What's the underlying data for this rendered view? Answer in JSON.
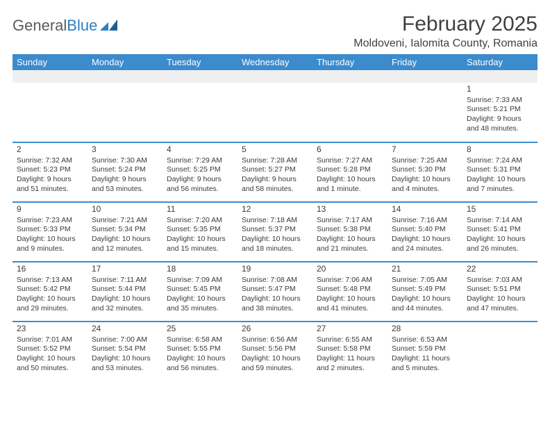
{
  "logo": {
    "text1": "General",
    "text2": "Blue"
  },
  "title": "February 2025",
  "location": "Moldoveni, Ialomita County, Romania",
  "colors": {
    "header_bg": "#3b8bcd",
    "header_text": "#ffffff",
    "row_border": "#3b8bcd",
    "blank_bg": "#efefef",
    "body_text": "#3a3a3a",
    "logo_gray": "#5a5a5a",
    "logo_blue": "#2a7ec4"
  },
  "columns": [
    "Sunday",
    "Monday",
    "Tuesday",
    "Wednesday",
    "Thursday",
    "Friday",
    "Saturday"
  ],
  "weeks": [
    [
      null,
      null,
      null,
      null,
      null,
      null,
      {
        "d": "1",
        "rise": "7:33 AM",
        "set": "5:21 PM",
        "dl1": "Daylight: 9 hours",
        "dl2": "and 48 minutes."
      }
    ],
    [
      {
        "d": "2",
        "rise": "7:32 AM",
        "set": "5:23 PM",
        "dl1": "Daylight: 9 hours",
        "dl2": "and 51 minutes."
      },
      {
        "d": "3",
        "rise": "7:30 AM",
        "set": "5:24 PM",
        "dl1": "Daylight: 9 hours",
        "dl2": "and 53 minutes."
      },
      {
        "d": "4",
        "rise": "7:29 AM",
        "set": "5:25 PM",
        "dl1": "Daylight: 9 hours",
        "dl2": "and 56 minutes."
      },
      {
        "d": "5",
        "rise": "7:28 AM",
        "set": "5:27 PM",
        "dl1": "Daylight: 9 hours",
        "dl2": "and 58 minutes."
      },
      {
        "d": "6",
        "rise": "7:27 AM",
        "set": "5:28 PM",
        "dl1": "Daylight: 10 hours",
        "dl2": "and 1 minute."
      },
      {
        "d": "7",
        "rise": "7:25 AM",
        "set": "5:30 PM",
        "dl1": "Daylight: 10 hours",
        "dl2": "and 4 minutes."
      },
      {
        "d": "8",
        "rise": "7:24 AM",
        "set": "5:31 PM",
        "dl1": "Daylight: 10 hours",
        "dl2": "and 7 minutes."
      }
    ],
    [
      {
        "d": "9",
        "rise": "7:23 AM",
        "set": "5:33 PM",
        "dl1": "Daylight: 10 hours",
        "dl2": "and 9 minutes."
      },
      {
        "d": "10",
        "rise": "7:21 AM",
        "set": "5:34 PM",
        "dl1": "Daylight: 10 hours",
        "dl2": "and 12 minutes."
      },
      {
        "d": "11",
        "rise": "7:20 AM",
        "set": "5:35 PM",
        "dl1": "Daylight: 10 hours",
        "dl2": "and 15 minutes."
      },
      {
        "d": "12",
        "rise": "7:18 AM",
        "set": "5:37 PM",
        "dl1": "Daylight: 10 hours",
        "dl2": "and 18 minutes."
      },
      {
        "d": "13",
        "rise": "7:17 AM",
        "set": "5:38 PM",
        "dl1": "Daylight: 10 hours",
        "dl2": "and 21 minutes."
      },
      {
        "d": "14",
        "rise": "7:16 AM",
        "set": "5:40 PM",
        "dl1": "Daylight: 10 hours",
        "dl2": "and 24 minutes."
      },
      {
        "d": "15",
        "rise": "7:14 AM",
        "set": "5:41 PM",
        "dl1": "Daylight: 10 hours",
        "dl2": "and 26 minutes."
      }
    ],
    [
      {
        "d": "16",
        "rise": "7:13 AM",
        "set": "5:42 PM",
        "dl1": "Daylight: 10 hours",
        "dl2": "and 29 minutes."
      },
      {
        "d": "17",
        "rise": "7:11 AM",
        "set": "5:44 PM",
        "dl1": "Daylight: 10 hours",
        "dl2": "and 32 minutes."
      },
      {
        "d": "18",
        "rise": "7:09 AM",
        "set": "5:45 PM",
        "dl1": "Daylight: 10 hours",
        "dl2": "and 35 minutes."
      },
      {
        "d": "19",
        "rise": "7:08 AM",
        "set": "5:47 PM",
        "dl1": "Daylight: 10 hours",
        "dl2": "and 38 minutes."
      },
      {
        "d": "20",
        "rise": "7:06 AM",
        "set": "5:48 PM",
        "dl1": "Daylight: 10 hours",
        "dl2": "and 41 minutes."
      },
      {
        "d": "21",
        "rise": "7:05 AM",
        "set": "5:49 PM",
        "dl1": "Daylight: 10 hours",
        "dl2": "and 44 minutes."
      },
      {
        "d": "22",
        "rise": "7:03 AM",
        "set": "5:51 PM",
        "dl1": "Daylight: 10 hours",
        "dl2": "and 47 minutes."
      }
    ],
    [
      {
        "d": "23",
        "rise": "7:01 AM",
        "set": "5:52 PM",
        "dl1": "Daylight: 10 hours",
        "dl2": "and 50 minutes."
      },
      {
        "d": "24",
        "rise": "7:00 AM",
        "set": "5:54 PM",
        "dl1": "Daylight: 10 hours",
        "dl2": "and 53 minutes."
      },
      {
        "d": "25",
        "rise": "6:58 AM",
        "set": "5:55 PM",
        "dl1": "Daylight: 10 hours",
        "dl2": "and 56 minutes."
      },
      {
        "d": "26",
        "rise": "6:56 AM",
        "set": "5:56 PM",
        "dl1": "Daylight: 10 hours",
        "dl2": "and 59 minutes."
      },
      {
        "d": "27",
        "rise": "6:55 AM",
        "set": "5:58 PM",
        "dl1": "Daylight: 11 hours",
        "dl2": "and 2 minutes."
      },
      {
        "d": "28",
        "rise": "6:53 AM",
        "set": "5:59 PM",
        "dl1": "Daylight: 11 hours",
        "dl2": "and 5 minutes."
      },
      null
    ]
  ]
}
